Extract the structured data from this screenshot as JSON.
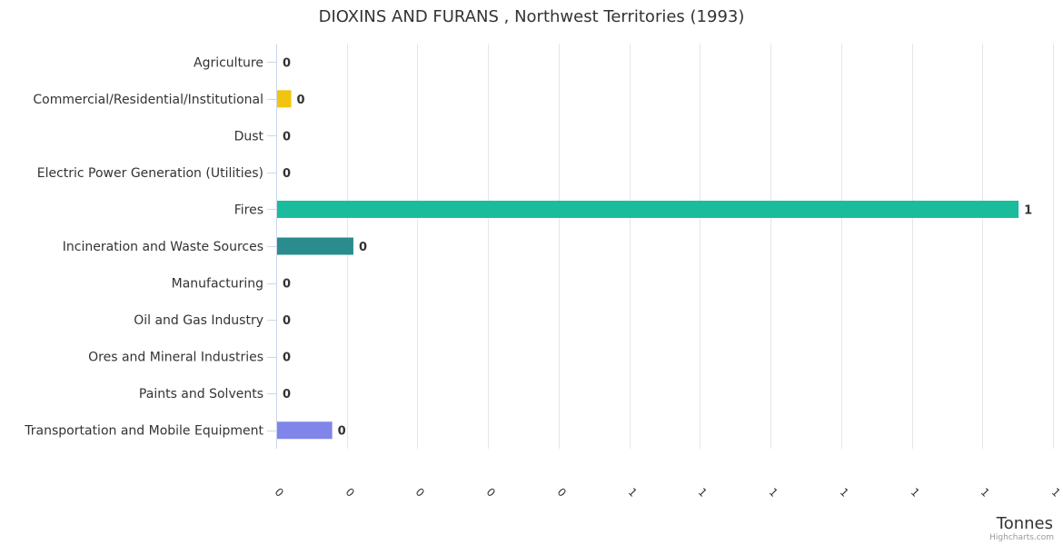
{
  "credits": "Highcharts.com",
  "chart_data": {
    "type": "bar",
    "orientation": "horizontal",
    "title": "DIOXINS AND FURANS , Northwest Territories (1993)",
    "xlabel": "",
    "ylabel": "Tonnes",
    "grid": true,
    "xlim": [
      0,
      1.1
    ],
    "tick_values": [
      0,
      0.1,
      0.2,
      0.3,
      0.4,
      0.5,
      0.6,
      0.7,
      0.8,
      0.9,
      1.0,
      1.1
    ],
    "tick_labels": [
      "0",
      "0",
      "0",
      "0",
      "0",
      "1",
      "1",
      "1",
      "1",
      "1",
      "1",
      "1"
    ],
    "categories": [
      "Agriculture",
      "Commercial/Residential/Institutional",
      "Dust",
      "Electric Power Generation (Utilities)",
      "Fires",
      "Incineration and Waste Sources",
      "Manufacturing",
      "Oil and Gas Industry",
      "Ores and Mineral Industries",
      "Paints and Solvents",
      "Transportation and Mobile Equipment"
    ],
    "values": [
      0,
      0.02,
      0,
      0,
      1.05,
      0.108,
      0,
      0,
      0,
      0,
      0.078
    ],
    "data_labels": [
      "0",
      "0",
      "0",
      "0",
      "1",
      "0",
      "0",
      "0",
      "0",
      "0",
      "0"
    ],
    "colors": [
      "#7cb5ec",
      "#f1c40f",
      "#7cb5ec",
      "#7cb5ec",
      "#1abc9c",
      "#2a8c8c",
      "#7cb5ec",
      "#7cb5ec",
      "#7cb5ec",
      "#7cb5ec",
      "#8085e9"
    ]
  }
}
